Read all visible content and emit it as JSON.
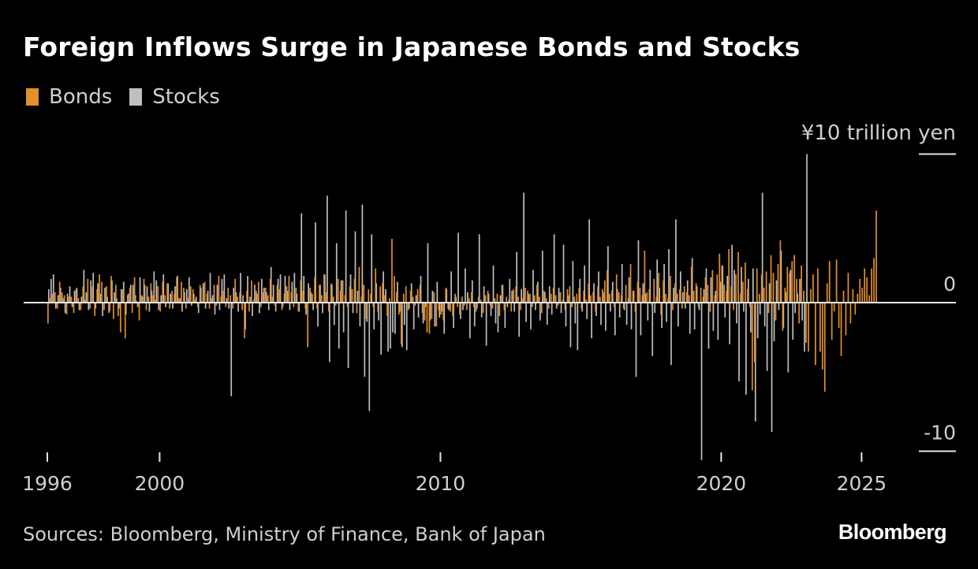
{
  "title": "Foreign Inflows Surge in Japanese Bonds and Stocks",
  "source": "Sources: Bloomberg, Ministry of Finance, Bank of Japan",
  "brand": "Bloomberg",
  "colors": {
    "background": "#000000",
    "bonds": "#e38f2a",
    "stocks": "#bfbfbf",
    "text": "#cfcfcf",
    "axis": "#e6e6e6"
  },
  "chart_data": {
    "type": "bar",
    "title": "Foreign Inflows Surge in Japanese Bonds and Stocks",
    "unit_label": "¥10 trillion yen",
    "ylabel": "",
    "xlabel": "",
    "frequency": "monthly",
    "x_start": "1996-01",
    "ylim": [
      -10,
      10
    ],
    "y_ticks": [
      {
        "value": 10,
        "label": ""
      },
      {
        "value": 0,
        "label": "0"
      },
      {
        "value": -10,
        "label": "-10"
      }
    ],
    "x_ticks": [
      {
        "year": 1996,
        "label": "1996"
      },
      {
        "year": 2000,
        "label": "2000"
      },
      {
        "year": 2010,
        "label": "2010"
      },
      {
        "year": 2020,
        "label": "2020"
      },
      {
        "year": 2025,
        "label": "2025"
      }
    ],
    "legend": [
      {
        "name": "Bonds",
        "color": "#e38f2a"
      },
      {
        "name": "Stocks",
        "color": "#bfbfbf"
      }
    ],
    "series": [
      {
        "name": "Bonds",
        "values": [
          -1.4,
          0.3,
          0.6,
          0.7,
          -0.4,
          1.4,
          0.7,
          0.5,
          -0.8,
          0.4,
          0.4,
          -0.7,
          0.9,
          0.3,
          -0.5,
          1.1,
          0.2,
          1.6,
          -0.4,
          1.1,
          -0.9,
          0.9,
          1.9,
          1.4,
          -0.5,
          1.1,
          -0.7,
          1.8,
          -1.1,
          1.2,
          -0.9,
          -2.0,
          0.9,
          -2.4,
          0.5,
          1.0,
          -0.7,
          1.7,
          0.1,
          -1.2,
          0.5,
          1.6,
          -0.5,
          0.4,
          1.3,
          0.5,
          0.2,
          1.1,
          -0.6,
          1.4,
          0.5,
          1.3,
          -0.4,
          0.8,
          0.6,
          1.7,
          0.3,
          1.4,
          1.0,
          -0.4,
          0.3,
          1.1,
          0.9,
          0.2,
          -0.3,
          1.2,
          0.1,
          1.4,
          0.6,
          -0.4,
          0.3,
          1.2,
          -0.2,
          1.8,
          0.4,
          0.8,
          -0.3,
          1.0,
          0.5,
          -0.4,
          1.6,
          0.4,
          0.7,
          -0.5,
          -2.4,
          0.8,
          -0.6,
          1.5,
          0.2,
          0.8,
          1.4,
          -0.3,
          0.7,
          1.0,
          0.5,
          1.6,
          0.4,
          -0.2,
          1.2,
          0.9,
          -0.5,
          0.6,
          1.1,
          1.8,
          0.7,
          -0.3,
          1.0,
          -0.6,
          1.5,
          0.8,
          -0.4,
          -3.0,
          1.0,
          0.6,
          1.7,
          -0.4,
          1.2,
          0.5,
          1.9,
          0.7,
          -0.6,
          1.3,
          0.4,
          -0.2,
          1.6,
          0.8,
          1.5,
          0.5,
          -0.3,
          1.1,
          0.9,
          1.6,
          -0.7,
          2.4,
          0.4,
          1.2,
          -1.1,
          0.9,
          0.6,
          -0.3,
          2.3,
          -0.6,
          1.1,
          1.3,
          0.5,
          -0.9,
          0.3,
          4.3,
          1.8,
          0.7,
          -0.8,
          -2.8,
          0.6,
          1.1,
          -0.5,
          0.8,
          0.4,
          -0.2,
          0.9,
          1.2,
          -0.7,
          -1.2,
          -2.0,
          -2.1,
          -1.1,
          0.7,
          -1.6,
          -0.5,
          -0.8,
          -1.2,
          1.0,
          -0.4,
          -0.6,
          -0.9,
          0.6,
          -0.3,
          -0.8,
          0.4,
          -0.2,
          -0.5,
          0.3,
          0.7,
          -0.3,
          -0.6,
          0.4,
          0.2,
          -0.7,
          0.5,
          0.8,
          -0.2,
          -0.4,
          0.3,
          0.6,
          -0.9,
          1.2,
          -0.5,
          0.4,
          0.2,
          -0.6,
          0.9,
          1.1,
          0.4,
          -0.5,
          0.3,
          1.0,
          0.8,
          0.6,
          -0.3,
          0.5,
          1.2,
          0.4,
          -0.7,
          0.8,
          0.3,
          -0.4,
          0.6,
          1.0,
          0.5,
          -0.2,
          0.7,
          0.2,
          -0.5,
          0.9,
          1.1,
          -0.3,
          0.4,
          0.6,
          1.0,
          -0.4,
          0.8,
          0.2,
          1.3,
          0.5,
          0.7,
          -0.6,
          1.1,
          0.4,
          0.9,
          1.5,
          2.2,
          0.6,
          0.8,
          -0.3,
          1.9,
          0.7,
          0.5,
          -0.4,
          1.2,
          0.3,
          2.6,
          0.8,
          -0.6,
          1.4,
          1.0,
          0.5,
          3.5,
          0.7,
          0.9,
          -0.2,
          1.6,
          0.4,
          2.0,
          -0.8,
          1.5,
          0.6,
          0.3,
          1.8,
          -0.5,
          1.3,
          0.6,
          0.9,
          -0.4,
          1.1,
          0.7,
          0.5,
          2.4,
          0.8,
          1.3,
          -0.3,
          1.0,
          0.4,
          1.7,
          1.2,
          -0.6,
          2.2,
          0.5,
          1.9,
          3.3,
          2.5,
          1.2,
          0.8,
          3.6,
          1.1,
          -0.5,
          1.9,
          3.4,
          0.6,
          1.4,
          2.7,
          0.9,
          -0.3,
          -5.9,
          -4.0,
          2.3,
          0.6,
          1.9,
          1.0,
          2.1,
          -0.7,
          3.2,
          2.0,
          -1.2,
          2.6,
          4.2,
          -1.9,
          1.0,
          2.4,
          2.0,
          2.8,
          3.2,
          1.6,
          -1.4,
          2.5,
          0.8,
          -2.7,
          -3.3,
          0.9,
          1.9,
          -4.2,
          2.3,
          -3.3,
          -4.5,
          -6.0,
          1.3,
          2.8,
          -2.5,
          -0.6,
          2.9,
          -1.7,
          -3.6,
          0.8,
          -2.2,
          2.0,
          -1.4,
          0.9,
          -0.8,
          0.6,
          1.6,
          1.0,
          2.3,
          1.7,
          0.5,
          2.3,
          3.0,
          6.2
        ],
        "color": "#e38f2a"
      },
      {
        "name": "Stocks",
        "values": [
          0.9,
          1.6,
          1.9,
          -0.4,
          0.5,
          1.0,
          0.3,
          -0.7,
          0.6,
          1.1,
          -0.3,
          0.8,
          1.0,
          -0.5,
          0.4,
          2.2,
          0.7,
          -0.5,
          1.5,
          2.0,
          -0.4,
          1.3,
          0.6,
          -0.9,
          1.0,
          0.4,
          -0.6,
          1.5,
          0.7,
          0.3,
          -0.4,
          0.9,
          1.4,
          -0.8,
          0.6,
          1.2,
          1.2,
          0.5,
          -0.3,
          1.7,
          0.4,
          1.2,
          1.1,
          -0.6,
          0.8,
          2.1,
          1.5,
          -0.5,
          0.5,
          1.9,
          -0.3,
          1.3,
          0.6,
          -0.4,
          1.1,
          1.8,
          0.3,
          -0.6,
          0.7,
          0.9,
          1.7,
          -0.2,
          0.6,
          0.4,
          -0.7,
          1.0,
          1.3,
          -0.4,
          0.8,
          2.0,
          0.5,
          -0.8,
          1.2,
          -0.5,
          1.6,
          1.9,
          0.3,
          -0.4,
          -6.3,
          1.0,
          0.7,
          -0.6,
          2.0,
          0.5,
          -1.8,
          1.8,
          0.4,
          -0.9,
          1.2,
          0.6,
          -0.7,
          1.6,
          1.0,
          0.7,
          -0.5,
          2.4,
          1.2,
          -0.6,
          1.6,
          1.9,
          -0.3,
          1.8,
          0.8,
          -0.5,
          1.4,
          2.0,
          0.6,
          -0.6,
          6.0,
          1.8,
          -0.8,
          1.3,
          0.7,
          -0.5,
          5.4,
          -1.6,
          1.2,
          -0.7,
          1.9,
          7.2,
          -4.0,
          1.2,
          -1.5,
          4.0,
          -3.1,
          1.5,
          -2.0,
          6.2,
          -4.4,
          1.9,
          -0.7,
          4.8,
          0.8,
          -1.6,
          6.6,
          -5.0,
          -1.3,
          -7.3,
          4.6,
          -1.8,
          1.3,
          -1.2,
          -3.5,
          2.1,
          0.9,
          -3.3,
          -3.1,
          -2.0,
          -2.1,
          1.4,
          -0.6,
          -3.0,
          -1.5,
          -3.2,
          -0.4,
          1.3,
          -1.8,
          0.5,
          -1.0,
          1.8,
          -1.4,
          -0.3,
          4.0,
          -1.2,
          0.8,
          -1.6,
          1.4,
          -1.0,
          -0.6,
          -2.1,
          0.9,
          -0.5,
          2.1,
          -1.7,
          0.4,
          4.7,
          -1.1,
          -0.5,
          2.3,
          0.7,
          -2.4,
          1.5,
          -1.6,
          -0.4,
          4.6,
          -1.0,
          1.1,
          -2.9,
          0.6,
          -0.9,
          2.5,
          -1.4,
          -2.0,
          0.5,
          1.2,
          -1.7,
          -0.3,
          1.6,
          0.8,
          -0.6,
          3.4,
          -2.3,
          0.9,
          7.4,
          -1.3,
          0.6,
          -1.8,
          2.2,
          -0.5,
          1.4,
          -1.2,
          3.5,
          0.7,
          -1.5,
          1.1,
          -0.8,
          4.6,
          -0.4,
          1.0,
          -0.7,
          3.9,
          -1.6,
          0.5,
          -3.0,
          2.8,
          -1.4,
          -3.2,
          1.6,
          -0.6,
          2.5,
          -1.1,
          5.6,
          -2.4,
          1.3,
          -0.9,
          2.1,
          -1.5,
          0.7,
          -1.9,
          3.8,
          -0.6,
          1.4,
          -2.2,
          0.9,
          -1.0,
          2.6,
          -0.5,
          -1.5,
          1.7,
          -1.8,
          0.8,
          -5.0,
          4.2,
          -2.2,
          1.3,
          0.6,
          -1.2,
          2.2,
          -3.6,
          -0.7,
          2.9,
          1.0,
          -1.7,
          2.6,
          -1.3,
          3.6,
          -4.2,
          1.0,
          5.6,
          -1.6,
          2.1,
          0.7,
          -0.4,
          1.5,
          -2.1,
          3.0,
          -1.8,
          1.1,
          -0.5,
          -10.6,
          0.9,
          2.3,
          -3.1,
          1.7,
          -1.9,
          0.8,
          -2.5,
          1.4,
          2.5,
          -1.0,
          1.8,
          -2.8,
          3.9,
          2.2,
          -1.4,
          -5.3,
          2.4,
          -0.6,
          -6.2,
          1.6,
          -2.0,
          2.3,
          -8.0,
          -2.4,
          -0.8,
          7.4,
          -1.6,
          -4.6,
          1.3,
          -8.7,
          -2.6,
          1.5,
          -0.5,
          3.5,
          -1.7,
          0.7,
          -4.7,
          2.2,
          -2.5,
          -0.7,
          0.6,
          1.6,
          -1.2,
          -3.3,
          10.0
        ],
        "color": "#bfbfbf"
      }
    ]
  }
}
